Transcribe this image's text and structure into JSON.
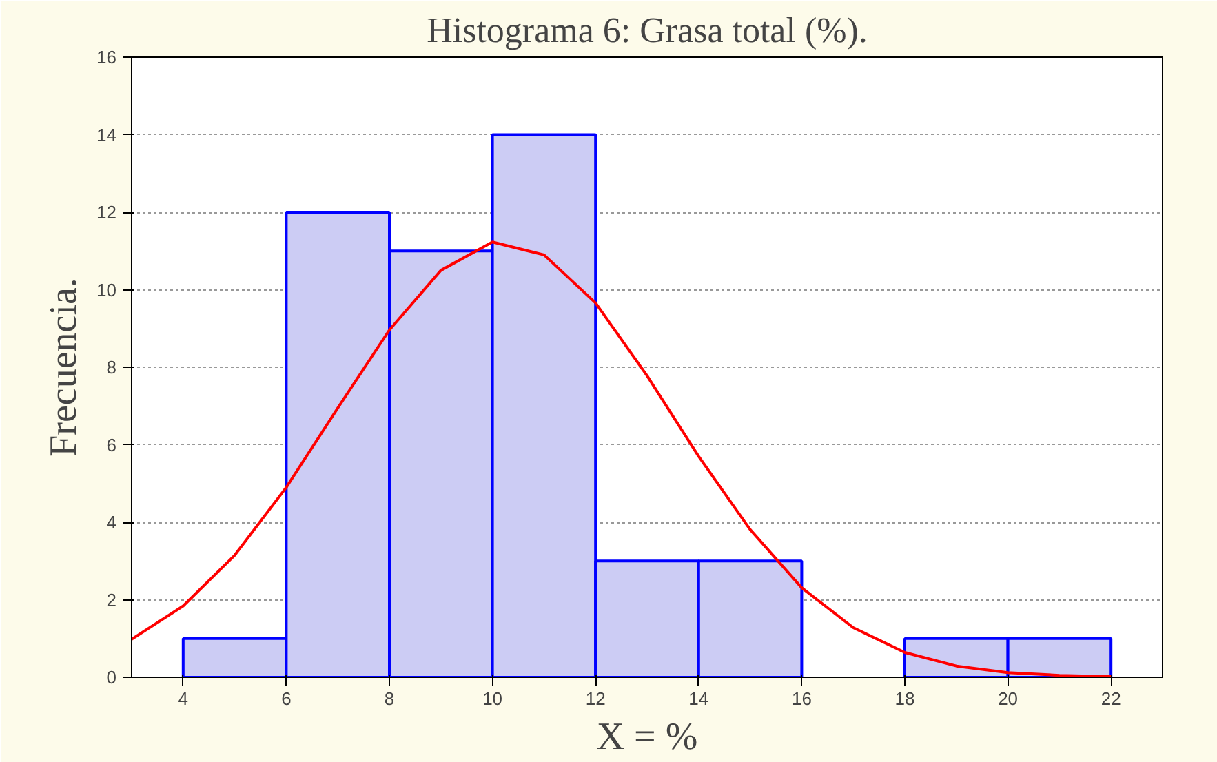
{
  "chart_data": {
    "type": "histogram",
    "title": "Histograma 6: Grasa total (%).",
    "xlabel": "X = %",
    "ylabel": "Frecuencia.",
    "series": [
      {
        "color": "#ccccf4",
        "bins": [
          4,
          6,
          8,
          10,
          12,
          14,
          16,
          18,
          20,
          22
        ],
        "values": [
          1,
          12,
          11,
          14,
          3,
          3,
          0,
          1,
          1
        ]
      },
      {
        "type": "line",
        "color": "#ff0000",
        "x": [
          3,
          4,
          5,
          6,
          7,
          8,
          9,
          10,
          11,
          12,
          13,
          14,
          15,
          16,
          17,
          18,
          19,
          20,
          21,
          22
        ],
        "values": [
          0.98,
          1.84,
          3.15,
          4.9,
          6.95,
          8.96,
          10.5,
          11.23,
          10.9,
          9.66,
          7.78,
          5.7,
          3.81,
          2.31,
          1.28,
          0.64,
          0.29,
          0.12,
          0.05,
          0.02
        ]
      }
    ],
    "xlim": [
      3,
      23
    ],
    "xticks": [
      4,
      6,
      8,
      10,
      12,
      14,
      16,
      18,
      20,
      22
    ],
    "ylim": [
      0,
      16
    ],
    "yticks": [
      0,
      2,
      4,
      6,
      8,
      10,
      12,
      14,
      16
    ],
    "grid": "y"
  }
}
